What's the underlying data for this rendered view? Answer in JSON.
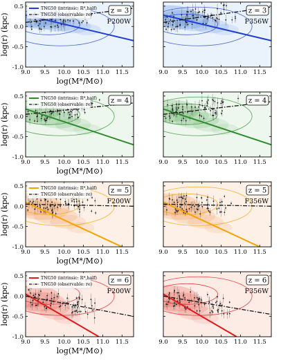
{
  "chart_data": [
    {
      "type": "scatter",
      "row": 0,
      "col": 0,
      "title": "z = 3",
      "filter": "F200W",
      "accent": "#1f3fd0",
      "fill": "#2f6fd6",
      "bg": "#eaf2fb",
      "legend": [
        "TNG50 (intrinsic: R*,half)",
        "TNG50 (observable: re)"
      ],
      "xlabel": "log(M*/M⊙)",
      "ylabel": "log(r) (kpc)",
      "xlim": [
        9.0,
        11.8
      ],
      "ylim": [
        -1.0,
        0.6
      ],
      "xticks": [
        "9.0",
        "9.5",
        "10.0",
        "10.5",
        "11.0",
        "11.5"
      ],
      "yticks": [
        "-1.0",
        "-0.5",
        "0.0",
        "0.5"
      ],
      "series": [
        {
          "name": "TNG50 (intrinsic: R*,half)",
          "x": [
            9.0,
            11.8
          ],
          "y": [
            0.28,
            -0.35
          ]
        },
        {
          "name": "TNG50 (observable: re)",
          "x": [
            9.0,
            11.8
          ],
          "y": [
            0.1,
            0.45
          ]
        }
      ]
    },
    {
      "type": "scatter",
      "row": 0,
      "col": 1,
      "title": "z = 3",
      "filter": "F356W",
      "accent": "#1f3fd0",
      "fill": "#2f6fd6",
      "bg": "#eaf2fb",
      "xlim": [
        9.0,
        11.8
      ],
      "ylim": [
        -1.0,
        0.6
      ],
      "xticks": [
        "9.0",
        "9.5",
        "10.0",
        "10.5",
        "11.0",
        "11.5"
      ],
      "yticks": [],
      "series": [
        {
          "x": [
            9.0,
            11.8
          ],
          "y": [
            0.28,
            -0.35
          ]
        },
        {
          "x": [
            9.0,
            11.8
          ],
          "y": [
            0.1,
            0.48
          ]
        }
      ]
    },
    {
      "type": "scatter",
      "row": 1,
      "col": 0,
      "title": "z = 4",
      "filter": "",
      "accent": "#2e8b2e",
      "fill": "#4aa64a",
      "bg": "#eef7ee",
      "legend": [
        "TNG50 (intrinsic: R*,half)",
        "TNG50 (observable: re)"
      ],
      "xlabel": "log(M*/M⊙)",
      "ylabel": "log(r) (kpc)",
      "xlim": [
        9.0,
        11.8
      ],
      "ylim": [
        -1.0,
        0.6
      ],
      "xticks": [
        "9.0",
        "9.5",
        "10.0",
        "10.5",
        "11.0",
        "11.5"
      ],
      "yticks": [
        "-1.0",
        "-0.5",
        "0.0",
        "0.5"
      ],
      "series": [
        {
          "name": "TNG50 (intrinsic: R*,half)",
          "x": [
            9.0,
            11.8
          ],
          "y": [
            0.18,
            -0.7
          ]
        },
        {
          "name": "TNG50 (observable: re)",
          "x": [
            9.0,
            11.8
          ],
          "y": [
            0.05,
            0.33
          ]
        }
      ]
    },
    {
      "type": "scatter",
      "row": 1,
      "col": 1,
      "title": "z = 4",
      "filter": "",
      "accent": "#2e8b2e",
      "fill": "#4aa64a",
      "bg": "#eef7ee",
      "xlim": [
        9.0,
        11.8
      ],
      "ylim": [
        -1.0,
        0.6
      ],
      "xticks": [
        "9.0",
        "9.5",
        "10.0",
        "10.5",
        "11.0",
        "11.5"
      ],
      "yticks": [],
      "series": [
        {
          "x": [
            9.0,
            11.8
          ],
          "y": [
            0.18,
            -0.7
          ]
        },
        {
          "x": [
            9.0,
            11.8
          ],
          "y": [
            0.05,
            0.36
          ]
        }
      ]
    },
    {
      "type": "scatter",
      "row": 2,
      "col": 0,
      "title": "z = 5",
      "filter": "F200W",
      "accent": "#f5a300",
      "fill": "#ef7a2a",
      "bg": "#fdf0e6",
      "legend": [
        "TNG50 (intrinsic: R*,half)",
        "TNG50 (observable: re)"
      ],
      "xlabel": "log(M*/M⊙)",
      "ylabel": "log(r) (kpc)",
      "xlim": [
        9.0,
        11.8
      ],
      "ylim": [
        -1.0,
        0.6
      ],
      "xticks": [
        "9.0",
        "9.5",
        "10.0",
        "10.5",
        "11.0",
        "11.5"
      ],
      "yticks": [
        "-1.0",
        "-0.5",
        "0.0",
        "0.5"
      ],
      "series": [
        {
          "name": "TNG50 (intrinsic: R*,half)",
          "x": [
            9.0,
            11.5
          ],
          "y": [
            0.1,
            -1.0
          ]
        },
        {
          "name": "TNG50 (observable: re)",
          "x": [
            9.0,
            11.8
          ],
          "y": [
            0.05,
            0.0
          ]
        }
      ]
    },
    {
      "type": "scatter",
      "row": 2,
      "col": 1,
      "title": "z = 5",
      "filter": "F356W",
      "accent": "#f5a300",
      "fill": "#ef7a2a",
      "bg": "#fdf0e6",
      "xlim": [
        9.0,
        11.8
      ],
      "ylim": [
        -1.0,
        0.6
      ],
      "xticks": [
        "9.0",
        "9.5",
        "10.0",
        "10.5",
        "11.0",
        "11.5"
      ],
      "yticks": [],
      "series": [
        {
          "x": [
            9.0,
            11.5
          ],
          "y": [
            0.1,
            -1.0
          ]
        },
        {
          "x": [
            9.0,
            11.8
          ],
          "y": [
            0.05,
            0.0
          ]
        }
      ]
    },
    {
      "type": "scatter",
      "row": 3,
      "col": 0,
      "title": "z = 6",
      "filter": "F200W",
      "accent": "#e01a1a",
      "fill": "#e23b2e",
      "bg": "#fdece6",
      "legend": [
        "TNG50 (intrinsic: R*,half)",
        "TNG50 (observable: re)"
      ],
      "xlabel": "log(M*/M⊙)",
      "ylabel": "log(r) (kpc)",
      "xlim": [
        9.0,
        11.8
      ],
      "ylim": [
        -1.0,
        0.6
      ],
      "xticks": [
        "9.0",
        "9.5",
        "10.0",
        "10.5",
        "11.0",
        "11.5"
      ],
      "yticks": [
        "-1.0",
        "-0.5",
        "0.0",
        "0.5"
      ],
      "series": [
        {
          "name": "TNG50 (intrinsic: R*,half)",
          "x": [
            9.0,
            10.9
          ],
          "y": [
            0.05,
            -1.0
          ]
        },
        {
          "name": "TNG50 (observable: re)",
          "x": [
            9.0,
            11.8
          ],
          "y": [
            0.0,
            -0.5
          ]
        }
      ]
    },
    {
      "type": "scatter",
      "row": 3,
      "col": 1,
      "title": "z = 6",
      "filter": "F356W",
      "accent": "#e01a1a",
      "fill": "#e23b2e",
      "bg": "#fdece6",
      "xlim": [
        9.0,
        11.8
      ],
      "ylim": [
        -1.0,
        0.6
      ],
      "xticks": [
        "9.0",
        "9.5",
        "10.0",
        "10.5",
        "11.0",
        "11.5"
      ],
      "yticks": [],
      "series": [
        {
          "x": [
            9.0,
            10.9
          ],
          "y": [
            0.05,
            -1.0
          ]
        },
        {
          "x": [
            9.0,
            11.8
          ],
          "y": [
            0.0,
            -0.45
          ]
        }
      ]
    }
  ]
}
